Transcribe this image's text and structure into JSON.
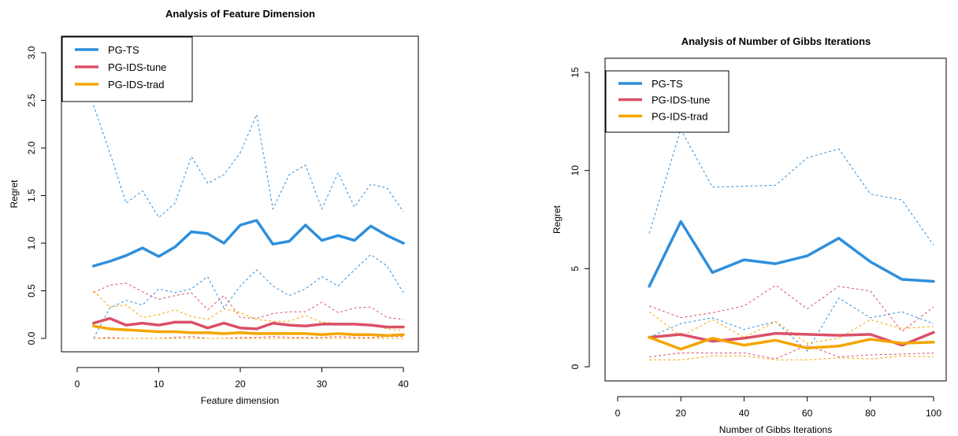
{
  "colors": {
    "PG-TS": "#2E8FDC",
    "PG-IDS-tune": "#DA5068",
    "PG-IDS-trad": "#F5A500"
  },
  "chart_data": [
    {
      "type": "line",
      "title": "Analysis of Feature Dimension",
      "xlabel": "Feature dimension",
      "ylabel": "Regret",
      "xlim": [
        0,
        40
      ],
      "ylim": [
        0,
        3.0
      ],
      "xticks": [
        0,
        10,
        20,
        30,
        40
      ],
      "yticks": [
        0.0,
        0.5,
        1.0,
        1.5,
        2.0,
        2.5,
        3.0
      ],
      "xtick_labels": [
        "0",
        "10",
        "20",
        "30",
        "40"
      ],
      "ytick_labels": [
        "0.0",
        "0.5",
        "1.0",
        "1.5",
        "2.0",
        "2.5",
        "3.0"
      ],
      "legend_position": "top-left",
      "x": [
        2,
        4,
        6,
        8,
        10,
        12,
        14,
        16,
        18,
        20,
        22,
        24,
        26,
        28,
        30,
        32,
        34,
        36,
        38,
        40
      ],
      "series": [
        {
          "name": "PG-TS",
          "mean": [
            0.76,
            0.81,
            0.87,
            0.95,
            0.86,
            0.96,
            1.12,
            1.1,
            1.0,
            1.19,
            1.24,
            0.99,
            1.02,
            1.19,
            1.03,
            1.08,
            1.03,
            1.18,
            1.08,
            1.0
          ],
          "upper": [
            2.45,
            1.95,
            1.42,
            1.55,
            1.27,
            1.42,
            1.91,
            1.63,
            1.72,
            1.95,
            2.35,
            1.36,
            1.72,
            1.82,
            1.36,
            1.74,
            1.38,
            1.62,
            1.58,
            1.33
          ],
          "lower": [
            0.0,
            0.32,
            0.4,
            0.35,
            0.52,
            0.48,
            0.52,
            0.65,
            0.32,
            0.55,
            0.72,
            0.55,
            0.45,
            0.52,
            0.65,
            0.55,
            0.72,
            0.88,
            0.76,
            0.48
          ]
        },
        {
          "name": "PG-IDS-tune",
          "mean": [
            0.16,
            0.21,
            0.14,
            0.16,
            0.14,
            0.17,
            0.17,
            0.11,
            0.16,
            0.11,
            0.1,
            0.16,
            0.14,
            0.13,
            0.15,
            0.15,
            0.15,
            0.14,
            0.12,
            0.12
          ],
          "upper": [
            0.48,
            0.56,
            0.58,
            0.49,
            0.41,
            0.45,
            0.48,
            0.3,
            0.45,
            0.22,
            0.21,
            0.26,
            0.28,
            0.28,
            0.38,
            0.27,
            0.32,
            0.33,
            0.22,
            0.2
          ],
          "lower": [
            0.0,
            0.01,
            0.0,
            0.0,
            0.0,
            0.01,
            0.02,
            0.0,
            0.0,
            0.01,
            0.01,
            0.02,
            0.01,
            0.01,
            0.01,
            0.02,
            0.01,
            0.01,
            0.02,
            0.02
          ]
        },
        {
          "name": "PG-IDS-trad",
          "mean": [
            0.13,
            0.1,
            0.09,
            0.08,
            0.07,
            0.07,
            0.06,
            0.06,
            0.05,
            0.06,
            0.05,
            0.05,
            0.05,
            0.05,
            0.04,
            0.05,
            0.04,
            0.04,
            0.03,
            0.04
          ],
          "upper": [
            0.5,
            0.33,
            0.35,
            0.22,
            0.25,
            0.3,
            0.23,
            0.2,
            0.31,
            0.27,
            0.2,
            0.18,
            0.18,
            0.24,
            0.17,
            0.16,
            0.14,
            0.15,
            0.1,
            0.08
          ],
          "lower": [
            0.0,
            0.0,
            0.0,
            0.0,
            0.0,
            0.0,
            0.0,
            0.0,
            0.0,
            0.0,
            0.0,
            0.0,
            0.0,
            0.0,
            0.0,
            0.0,
            0.0,
            0.0,
            0.0,
            0.0
          ]
        }
      ]
    },
    {
      "type": "line",
      "title": "Analysis of Number of Gibbs Iterations",
      "xlabel": "Number of Gibbs Iterations",
      "ylabel": "Regret",
      "xlim": [
        0,
        100
      ],
      "ylim": [
        0,
        15
      ],
      "xticks": [
        0,
        20,
        40,
        60,
        80,
        100
      ],
      "yticks": [
        0,
        5,
        10,
        15
      ],
      "xtick_labels": [
        "0",
        "20",
        "40",
        "60",
        "80",
        "100"
      ],
      "ytick_labels": [
        "0",
        "5",
        "10",
        "15"
      ],
      "legend_position": "top-left",
      "x": [
        10,
        20,
        30,
        40,
        50,
        60,
        70,
        80,
        90,
        100
      ],
      "series": [
        {
          "name": "PG-TS",
          "mean": [
            4.1,
            7.4,
            4.8,
            5.45,
            5.25,
            5.65,
            6.55,
            5.35,
            4.45,
            4.35
          ],
          "upper": [
            6.8,
            12.1,
            9.15,
            9.2,
            9.25,
            10.65,
            11.1,
            8.8,
            8.5,
            6.2
          ],
          "lower": [
            1.5,
            2.2,
            2.5,
            1.9,
            2.3,
            0.8,
            3.5,
            2.5,
            2.8,
            2.2
          ]
        },
        {
          "name": "PG-IDS-tune",
          "mean": [
            1.5,
            1.65,
            1.3,
            1.45,
            1.7,
            1.65,
            1.6,
            1.65,
            1.1,
            1.75
          ],
          "upper": [
            3.1,
            2.5,
            2.75,
            3.1,
            4.15,
            2.95,
            4.1,
            3.85,
            1.8,
            3.05
          ],
          "lower": [
            0.5,
            0.7,
            0.7,
            0.7,
            0.4,
            1.1,
            0.5,
            0.6,
            0.65,
            0.7
          ]
        },
        {
          "name": "PG-IDS-trad",
          "mean": [
            1.5,
            0.9,
            1.45,
            1.1,
            1.35,
            0.95,
            1.05,
            1.4,
            1.2,
            1.25
          ],
          "upper": [
            2.8,
            1.55,
            2.4,
            1.5,
            2.3,
            1.2,
            1.45,
            2.4,
            1.95,
            2.05
          ],
          "lower": [
            0.35,
            0.35,
            0.55,
            0.55,
            0.35,
            0.35,
            0.45,
            0.4,
            0.55,
            0.5
          ]
        }
      ]
    }
  ]
}
